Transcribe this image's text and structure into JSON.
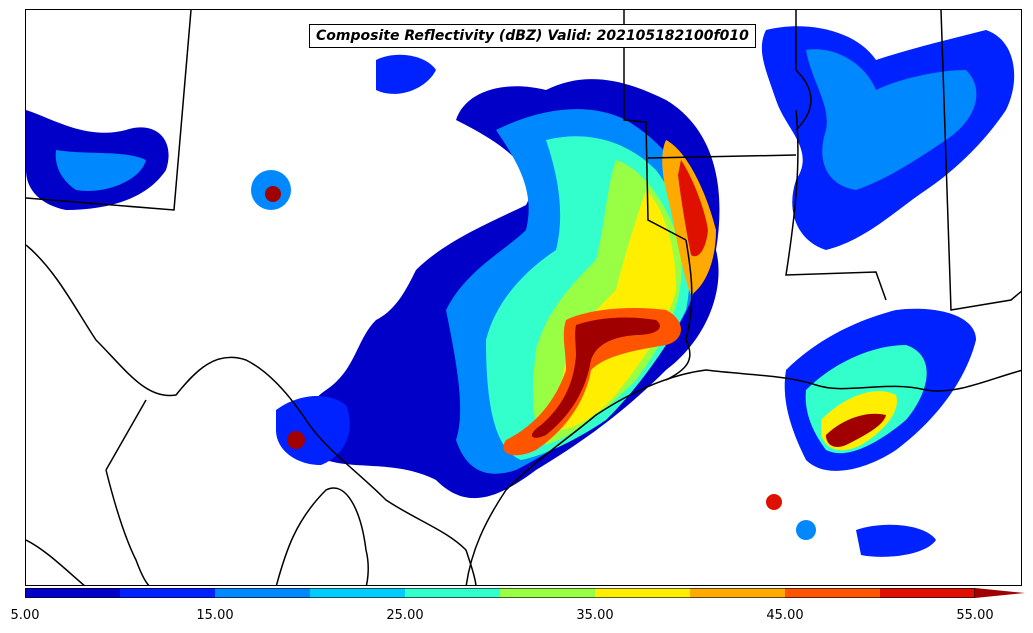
{
  "title": "Composite Reflectivity (dBZ) Valid: 202105182100f010",
  "colorbar": {
    "ticks": [
      "5.00",
      "15.00",
      "25.00",
      "35.00",
      "45.00",
      "55.00"
    ],
    "tick_values": [
      5,
      15,
      25,
      35,
      45,
      55
    ],
    "levels": [
      5,
      10,
      15,
      20,
      25,
      30,
      35,
      40,
      45,
      50,
      55
    ],
    "colors": [
      "#0000c8",
      "#0022ff",
      "#0088ff",
      "#00ccff",
      "#33ffcc",
      "#99ff44",
      "#ffee00",
      "#ffaa00",
      "#ff5500",
      "#e01000",
      "#a00000"
    ],
    "extend": "max"
  }
}
